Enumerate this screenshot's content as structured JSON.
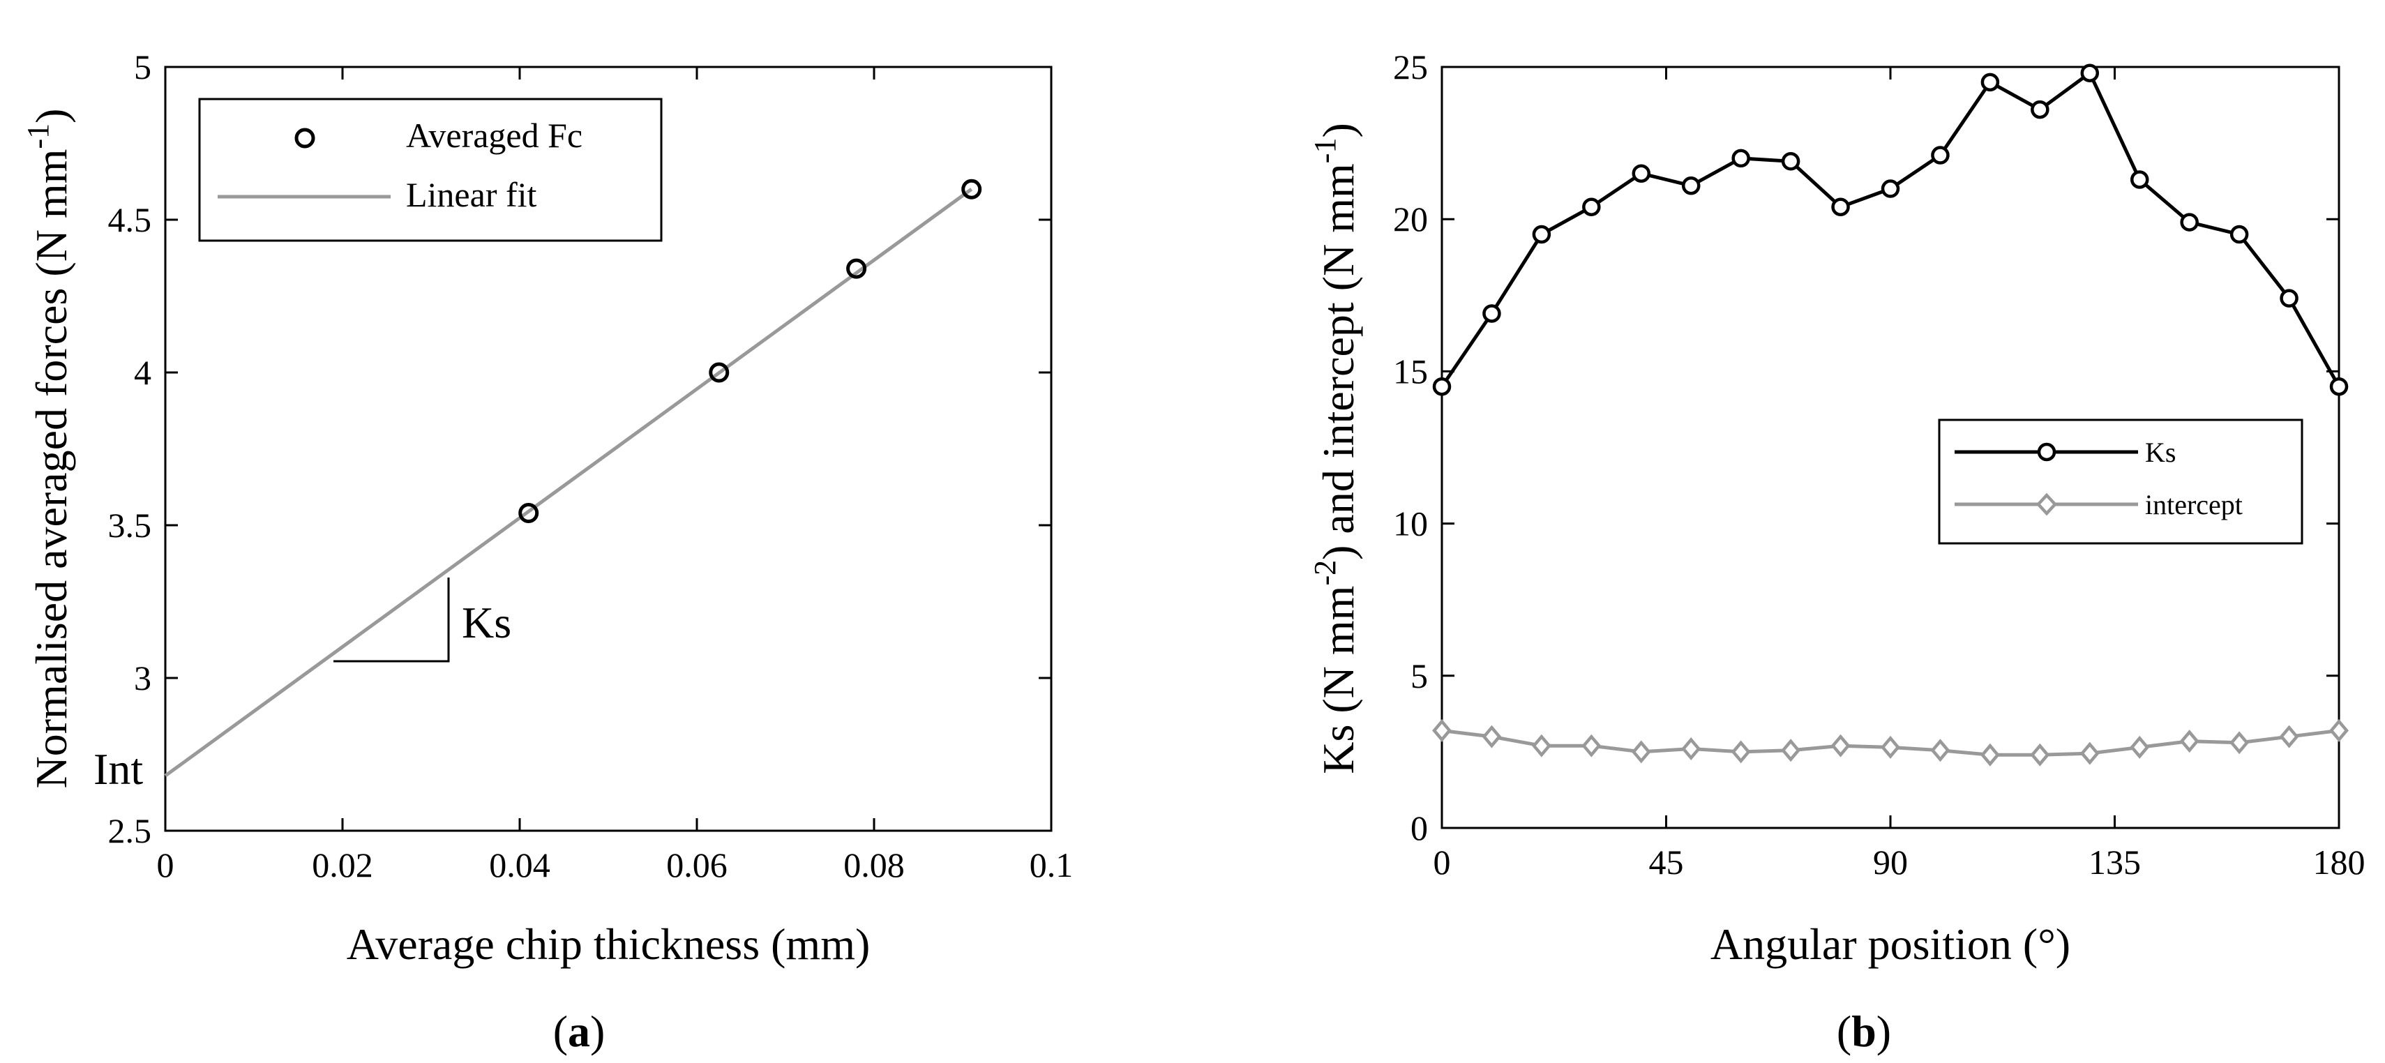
{
  "chart_data": [
    {
      "type": "scatter",
      "panel_label": "a",
      "xlabel": "Average chip thickness (mm)",
      "ylabel": "Normalised averaged forces (N mm",
      "ylabel_sup": "-1",
      "ylabel_close": ")",
      "xlim": [
        0,
        0.1
      ],
      "ylim": [
        2.5,
        5
      ],
      "xticks": [
        "0",
        "0.02",
        "0.04",
        "0.06",
        "0.08",
        "0.1"
      ],
      "yticks": [
        "2.5",
        "3",
        "3.5",
        "4",
        "4.5",
        "5"
      ],
      "grid": false,
      "legend_position": "top-left",
      "series": [
        {
          "name": "Averaged Fc",
          "kind": "markers",
          "marker": "circle",
          "color": "#000000",
          "x": [
            0.041,
            0.0625,
            0.078,
            0.091
          ],
          "y": [
            3.54,
            4.0,
            4.34,
            4.6
          ]
        },
        {
          "name": "Linear fit",
          "kind": "line",
          "color": "#999999",
          "x": [
            0,
            0.091
          ],
          "y": [
            2.68,
            4.6
          ]
        }
      ],
      "annotations": {
        "slope_label": "Ks",
        "intercept_label": "Int"
      }
    },
    {
      "type": "line",
      "panel_label": "b",
      "xlabel": "Angular position (°)",
      "ylabel_parts": [
        "Ks (N mm",
        "-2",
        ") and intercept (N mm",
        "-1",
        ")"
      ],
      "xlim": [
        0,
        180
      ],
      "ylim": [
        0,
        25
      ],
      "xticks": [
        "0",
        "45",
        "90",
        "135",
        "180"
      ],
      "yticks": [
        "0",
        "5",
        "10",
        "15",
        "20",
        "25"
      ],
      "grid": false,
      "legend_position": "center-right",
      "x": [
        0,
        10,
        20,
        30,
        40,
        50,
        60,
        70,
        80,
        90,
        100,
        110,
        120,
        130,
        140,
        150,
        160,
        170,
        180
      ],
      "series": [
        {
          "name": "Ks",
          "marker": "circle",
          "color": "#000000",
          "values": [
            14.5,
            16.9,
            19.5,
            20.4,
            21.5,
            21.1,
            22.0,
            21.9,
            20.4,
            21.0,
            22.1,
            24.5,
            23.6,
            24.8,
            21.3,
            19.9,
            19.5,
            17.4,
            14.5
          ]
        },
        {
          "name": "intercept",
          "marker": "diamond",
          "color": "#999999",
          "values": [
            3.2,
            3.0,
            2.7,
            2.7,
            2.5,
            2.6,
            2.5,
            2.55,
            2.7,
            2.65,
            2.55,
            2.4,
            2.4,
            2.45,
            2.65,
            2.85,
            2.8,
            3.0,
            3.2
          ]
        }
      ]
    }
  ]
}
